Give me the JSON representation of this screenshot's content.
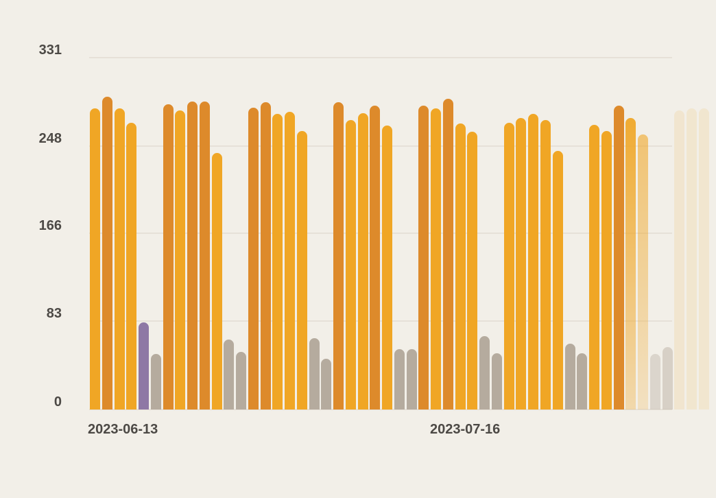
{
  "chart_data": {
    "type": "bar",
    "title": "",
    "xlabel": "",
    "ylabel": "",
    "x_tick_labels": [
      "2023-06-13",
      "2023-07-16"
    ],
    "y_ticks": [
      0,
      83,
      166,
      248,
      331
    ],
    "ylim": [
      0,
      331
    ],
    "grid": "horizontal",
    "legend": "none",
    "bars": [
      {
        "v": 283,
        "c": "amber"
      },
      {
        "v": 294,
        "c": "orange"
      },
      {
        "v": 283,
        "c": "amber"
      },
      {
        "v": 270,
        "c": "amber"
      },
      {
        "v": 82,
        "c": "purple"
      },
      {
        "v": 52,
        "c": "gray"
      },
      {
        "v": 287,
        "c": "orange"
      },
      {
        "v": 281,
        "c": "amber"
      },
      {
        "v": 290,
        "c": "orange"
      },
      {
        "v": 290,
        "c": "orange"
      },
      {
        "v": 241,
        "c": "amber"
      },
      {
        "v": 66,
        "c": "gray"
      },
      {
        "v": 54,
        "c": "gray"
      },
      {
        "v": 284,
        "c": "orange"
      },
      {
        "v": 289,
        "c": "orange"
      },
      {
        "v": 278,
        "c": "amber"
      },
      {
        "v": 280,
        "c": "amber"
      },
      {
        "v": 262,
        "c": "amber"
      },
      {
        "v": 67,
        "c": "gray"
      },
      {
        "v": 48,
        "c": "gray"
      },
      {
        "v": 289,
        "c": "orange"
      },
      {
        "v": 272,
        "c": "amber"
      },
      {
        "v": 279,
        "c": "amber"
      },
      {
        "v": 286,
        "c": "orange"
      },
      {
        "v": 267,
        "c": "amber"
      },
      {
        "v": 57,
        "c": "gray"
      },
      {
        "v": 57,
        "c": "gray"
      },
      {
        "v": 286,
        "c": "orange"
      },
      {
        "v": 283,
        "c": "amber"
      },
      {
        "v": 292,
        "c": "orange"
      },
      {
        "v": 269,
        "c": "amber"
      },
      {
        "v": 261,
        "c": "amber"
      },
      {
        "v": 69,
        "c": "gray"
      },
      {
        "v": 53,
        "c": "gray"
      },
      {
        "v": 270,
        "c": "amber"
      },
      {
        "v": 274,
        "c": "amber"
      },
      {
        "v": 278,
        "c": "amber"
      },
      {
        "v": 272,
        "c": "amber"
      },
      {
        "v": 243,
        "c": "amber"
      },
      {
        "v": 62,
        "c": "gray"
      },
      {
        "v": 53,
        "c": "gray"
      },
      {
        "v": 268,
        "c": "amber"
      },
      {
        "v": 262,
        "c": "amber"
      },
      {
        "v": 286,
        "c": "orange"
      },
      {
        "v": 274,
        "c": "amber",
        "o": 0.93,
        "fade": true
      },
      {
        "v": 259,
        "c": "amber",
        "o": 0.6,
        "fade": true
      },
      {
        "v": 52,
        "c": "gray",
        "o": 0.38
      },
      {
        "v": 59,
        "c": "gray",
        "o": 0.45
      },
      {
        "v": 281,
        "c": "amber",
        "o": 0.13
      },
      {
        "v": 283,
        "c": "amber",
        "o": 0.12
      },
      {
        "v": 283,
        "c": "amber",
        "o": 0.12
      }
    ]
  },
  "colors": {
    "amber": "#F0A625",
    "orange": "#DD8A2B",
    "gray": "#B5AB9E",
    "purple": "#8E78A5",
    "background": "#F2EFE8",
    "gridline": "#E6E1D8",
    "text": "#4C4945"
  }
}
